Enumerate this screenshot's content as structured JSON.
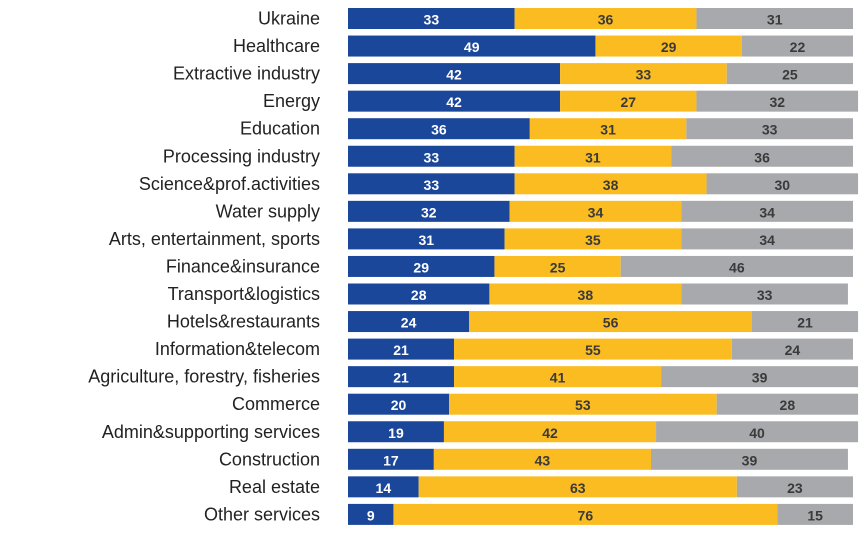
{
  "chart_data": {
    "type": "stacked_bar_horizontal",
    "categories": [
      "Ukraine",
      "Healthcare",
      "Extractive industry",
      "Energy",
      "Education",
      "Processing industry",
      "Science&prof.activities",
      "Water supply",
      "Arts, entertainment, sports",
      "Finance&insurance",
      "Transport&logistics",
      "Hotels&restaurants",
      "Information&telecom",
      "Agriculture, forestry, fisheries",
      "Commerce",
      "Admin&supporting services",
      "Construction",
      "Real estate",
      "Other services"
    ],
    "series": [
      {
        "color": "#1b479b",
        "label_color": "#ffffff",
        "values": [
          33,
          49,
          42,
          42,
          36,
          33,
          33,
          32,
          31,
          29,
          28,
          24,
          21,
          21,
          20,
          19,
          17,
          14,
          9
        ]
      },
      {
        "color": "#fbbc22",
        "label_color": "#3a3a3a",
        "values": [
          36,
          29,
          33,
          27,
          31,
          31,
          38,
          34,
          35,
          25,
          38,
          56,
          55,
          41,
          53,
          42,
          43,
          63,
          76
        ]
      },
      {
        "color": "#a7a9ac",
        "label_color": "#3a3a3a",
        "values": [
          31,
          22,
          25,
          32,
          33,
          36,
          30,
          34,
          34,
          46,
          33,
          21,
          24,
          39,
          28,
          40,
          39,
          23,
          15
        ]
      }
    ]
  }
}
